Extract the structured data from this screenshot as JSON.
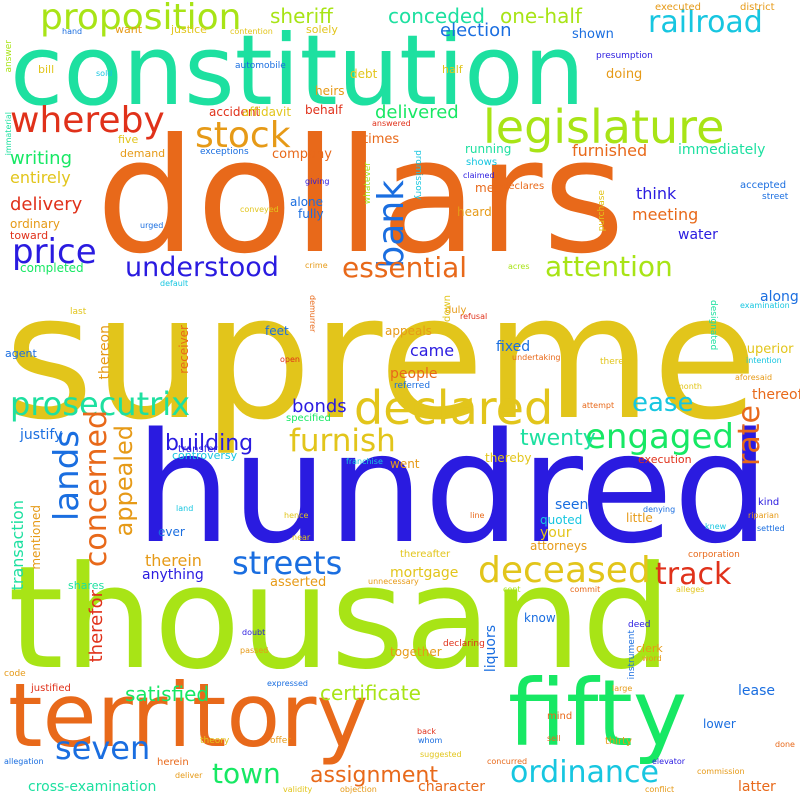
{
  "palette": {
    "orange": "#e8691a",
    "yellow": "#e2c51b",
    "lime": "#a8e416",
    "green": "#17e864",
    "teal": "#1de0a0",
    "cyan": "#17c6e0",
    "blue": "#1a6ee0",
    "indigo": "#2a1be0",
    "red": "#e0311a",
    "amber": "#e69a17"
  },
  "words": [
    "supreme",
    "dollars",
    "hundred",
    "thousand",
    "constitution",
    "territory",
    "fifty",
    "legislature",
    "proposition",
    "railroad",
    "declared",
    "whereby",
    "stock",
    "bank",
    "price",
    "understood",
    "essential",
    "attention",
    "prosecutrix",
    "furnish",
    "engaged",
    "rate",
    "lands",
    "concerned",
    "appealed",
    "deceased",
    "streets",
    "track",
    "seven",
    "town",
    "ordinance",
    "assignment",
    "certificate",
    "satisfied",
    "ease",
    "building",
    "twenty",
    "bonds",
    "conceded",
    "one-half",
    "sheriff",
    "election",
    "delivered",
    "writing",
    "delivery",
    "entirely",
    "furnished",
    "immediately",
    "meeting",
    "think",
    "water",
    "along",
    "came",
    "fixed",
    "superior",
    "thereof",
    "therein",
    "mortgage",
    "anything",
    "asserted",
    "transaction",
    "therefor",
    "liquors",
    "cross-examination",
    "character",
    "latter",
    "lease",
    "justify",
    "people",
    "your",
    "seen",
    "quoted",
    "attorneys",
    "know",
    "together",
    "feet",
    "appeals",
    "thereon",
    "company",
    "times",
    "mere",
    "heard",
    "doing",
    "shown",
    "want",
    "justice",
    "heirs",
    "behalf",
    "debt",
    "accident",
    "affidavit",
    "demand",
    "ordinary",
    "completed",
    "toward",
    "alone",
    "fully",
    "bill",
    "solely",
    "half",
    "district",
    "executed",
    "presumption",
    "answer",
    "hand",
    "contention",
    "automobile",
    "sold",
    "immaterial",
    "answered",
    "five",
    "exceptions",
    "promissory",
    "whatever",
    "shows",
    "claimed",
    "declares",
    "running",
    "giving",
    "urged",
    "conveyed",
    "accepted",
    "street",
    "purchase",
    "crime",
    "acres",
    "default",
    "examination",
    "last",
    "refusal",
    "demurrer",
    "receiver",
    "duly",
    "down",
    "agent",
    "open",
    "undertaking",
    "designated",
    "intention",
    "aforesaid",
    "referred",
    "thereto",
    "month",
    "attempt",
    "transfer",
    "controversy",
    "specified",
    "went",
    "thereby",
    "execution",
    "franchise",
    "land",
    "hence",
    "near",
    "ever",
    "denying",
    "riparian",
    "kind",
    "knew",
    "settled",
    "little",
    "line",
    "corporation",
    "thereafter",
    "unnecessary",
    "cent",
    "commit",
    "alleges",
    "shares",
    "mentioned",
    "doubt",
    "deed",
    "passed",
    "declaring",
    "instrument",
    "clerk",
    "word",
    "code",
    "justified",
    "expressed",
    "large",
    "mind",
    "back",
    "whom",
    "sell",
    "lower",
    "thirty",
    "offer",
    "theory",
    "allegation",
    "herein",
    "deliver",
    "suggested",
    "concurred",
    "elevator",
    "commission",
    "validity",
    "objection",
    "conflict",
    "done"
  ]
}
